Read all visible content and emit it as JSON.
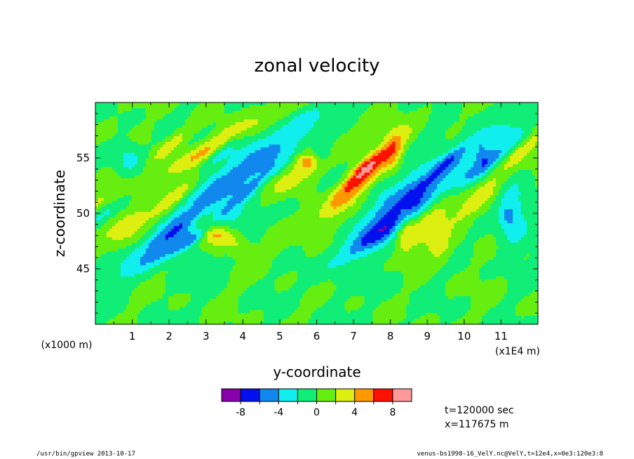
{
  "chart_data": {
    "type": "heatmap",
    "title": "zonal velocity",
    "xlabel": "y-coordinate",
    "ylabel": "z-coordinate",
    "x_unit_note": "(x1E4 m)",
    "y_unit_note": "(x1000 m)",
    "xlim": [
      0,
      12
    ],
    "ylim": [
      40,
      60
    ],
    "x_ticks": [
      "1",
      "2",
      "3",
      "4",
      "5",
      "6",
      "7",
      "8",
      "9",
      "10",
      "11"
    ],
    "y_ticks": [
      "45",
      "50",
      "55"
    ],
    "colorbar": {
      "levels": [
        -10,
        -8,
        -6,
        -4,
        -2,
        0,
        2,
        4,
        6,
        8,
        10
      ],
      "tick_labels": [
        "-8",
        "-4",
        "0",
        "4",
        "8"
      ],
      "colors": [
        "#8800aa",
        "#0011ee",
        "#1188ee",
        "#11eeee",
        "#11ee77",
        "#66ee11",
        "#ddee11",
        "#ff9900",
        "#ff1100",
        "#ff9999"
      ]
    },
    "annotations": [
      "t=120000 sec",
      "x=117675 m"
    ],
    "field_note": "Zonal velocity field on a y–z grid: mostly near 0 (green) with tilted features of positive (yellow/orange) and negative (cyan/blue) velocity between z≈45 and z≈58."
  },
  "footer": {
    "left": "/usr/bin/gpview  2013-10-17",
    "right": "venus-bs1998-16_VelY.nc@VelY,t=12e4,x=0e3:120e3:8"
  }
}
